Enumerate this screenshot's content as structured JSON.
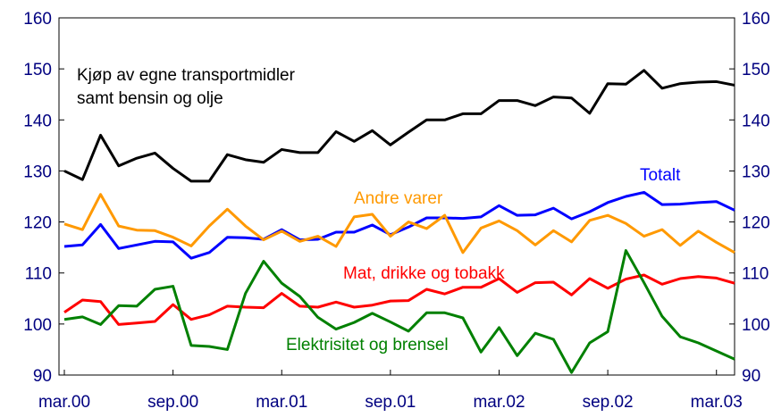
{
  "chart_data": {
    "type": "line",
    "categories": [
      "mar.00",
      null,
      null,
      null,
      null,
      null,
      "sep.00",
      null,
      null,
      null,
      null,
      null,
      "mar.01",
      null,
      null,
      null,
      null,
      null,
      "sep.01",
      null,
      null,
      null,
      null,
      null,
      "mar.02",
      null,
      null,
      null,
      null,
      null,
      "sep.02",
      null,
      null,
      null,
      null,
      null,
      "mar.03",
      null
    ],
    "series": [
      {
        "name": "Kjøp av egne transportmidler samt bensin og olje",
        "color": "#000000",
        "values": [
          130,
          128.3,
          137,
          131,
          132.5,
          133.5,
          130.5,
          128,
          128,
          133.2,
          132.2,
          131.7,
          134.2,
          133.6,
          133.6,
          137.7,
          135.8,
          137.9,
          135.1,
          137.6,
          140,
          140,
          141.2,
          141.2,
          143.8,
          143.8,
          142.8,
          144.5,
          144.3,
          141.3,
          147.1,
          147,
          149.7,
          146.2,
          147.1,
          147.4,
          147.5,
          146.8
        ]
      },
      {
        "name": "Totalt",
        "color": "#0000ff",
        "values": [
          115.2,
          115.5,
          119.5,
          114.8,
          115.5,
          116.2,
          116.1,
          112.9,
          114,
          117,
          116.9,
          116.6,
          118.5,
          116.5,
          116.6,
          118,
          118,
          119.4,
          117.5,
          119,
          120.8,
          120.8,
          120.7,
          121,
          123.2,
          121.3,
          121.4,
          122.7,
          120.6,
          122,
          123.8,
          125,
          125.8,
          123.4,
          123.5,
          123.8,
          124,
          122.3
        ]
      },
      {
        "name": "Andre varer",
        "color": "#ff9900",
        "values": [
          119.6,
          118.5,
          125.4,
          119.2,
          118.4,
          118.3,
          117,
          115.3,
          119.2,
          122.5,
          119.2,
          116.5,
          118.2,
          116.2,
          117.2,
          115.2,
          121,
          121.5,
          117.2,
          120,
          118.7,
          121.3,
          114,
          118.8,
          120.2,
          118.3,
          115.5,
          118.3,
          116.1,
          120.3,
          121.3,
          119.7,
          117.2,
          118.5,
          115.4,
          118.2,
          116,
          114
        ]
      },
      {
        "name": "Mat, drikke og tobakk",
        "color": "#ff0000",
        "values": [
          102.3,
          104.7,
          104.4,
          99.9,
          100.2,
          100.5,
          103.8,
          100.9,
          101.8,
          103.5,
          103.3,
          103.2,
          106,
          103.5,
          103.3,
          104.3,
          103.3,
          103.7,
          104.5,
          104.6,
          106.8,
          105.9,
          107.2,
          107.2,
          108.9,
          106.2,
          108.1,
          108.2,
          105.7,
          108.9,
          107,
          108.8,
          109.6,
          107.8,
          108.9,
          109.3,
          109,
          108
        ]
      },
      {
        "name": "Elektrisitet og brensel",
        "color": "#008000",
        "values": [
          100.9,
          101.4,
          99.9,
          103.6,
          103.5,
          106.8,
          107.4,
          95.8,
          95.6,
          95,
          106,
          112.3,
          108,
          105.4,
          101.3,
          99,
          100.3,
          102.1,
          100.4,
          98.6,
          102.2,
          102.2,
          101.2,
          94.5,
          99.3,
          93.8,
          98.2,
          97,
          90.5,
          96.3,
          98.5,
          114.4,
          108.1,
          101.5,
          97.5,
          96.3,
          94.7,
          93.1
        ]
      }
    ],
    "ylim": [
      90,
      160
    ],
    "yticks": [
      90,
      100,
      110,
      120,
      130,
      140,
      150,
      160
    ],
    "y2lim": [
      90,
      160
    ],
    "y2ticks": [
      90,
      100,
      110,
      120,
      130,
      140,
      150,
      160
    ],
    "grid": false
  }
}
